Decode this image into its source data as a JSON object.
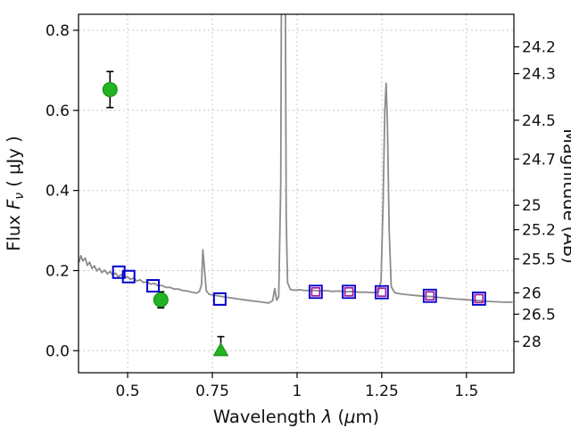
{
  "labels": {
    "ylabel_pre": "Flux ",
    "ylabel_F": "F",
    "ylabel_sub": "ν",
    "ylabel_post": " ( μJy )",
    "xlabel_pre": "Wavelength ",
    "xlabel_lambda": "λ",
    "xlabel_mid": " (",
    "xlabel_mu": "μ",
    "xlabel_post": "m)",
    "ylabel_right": "Magnitude (AB)"
  },
  "chart_data": {
    "type": "line",
    "title": "",
    "xlabel": "Wavelength λ (μm)",
    "ylabel": "Flux Fν ( μJy )",
    "ylabel_right": "Magnitude (AB)",
    "xlim": [
      0.355,
      1.64
    ],
    "ylim": [
      -0.055,
      0.84
    ],
    "grid": true,
    "legend": "none",
    "x_ticks": [
      0.5,
      0.75,
      1.0,
      1.25,
      1.5
    ],
    "x_tick_labels": [
      "0.5",
      "0.75",
      "1",
      "1.25",
      "1.5"
    ],
    "y_ticks_left": [
      0.0,
      0.2,
      0.4,
      0.6,
      0.8
    ],
    "y_tick_labels_left": [
      "0.0",
      "0.2",
      "0.4",
      "0.6",
      "0.8"
    ],
    "y_ticks_right": [
      {
        "label": "24.2",
        "flux": 0.7586
      },
      {
        "label": "24.3",
        "flux": 0.6918
      },
      {
        "label": "24.5",
        "flux": 0.5754
      },
      {
        "label": "24.7",
        "flux": 0.4786
      },
      {
        "label": "25",
        "flux": 0.3631
      },
      {
        "label": "25.2",
        "flux": 0.302
      },
      {
        "label": "25.5",
        "flux": 0.2291
      },
      {
        "label": "26",
        "flux": 0.1445
      },
      {
        "label": "26.5",
        "flux": 0.0912
      },
      {
        "label": "28",
        "flux": 0.0229
      }
    ],
    "colors": {
      "spectrum": "#8c8c8c",
      "green": "#22b422",
      "green_edge": "#0f8a0f",
      "blue": "#0000cd",
      "purple": "#a020a0",
      "errorbar": "#000000"
    },
    "series": [
      {
        "name": "model-spectrum",
        "type": "line",
        "color_key": "spectrum",
        "points": [
          [
            0.356,
            0.22
          ],
          [
            0.362,
            0.237
          ],
          [
            0.368,
            0.224
          ],
          [
            0.375,
            0.231
          ],
          [
            0.381,
            0.213
          ],
          [
            0.388,
            0.221
          ],
          [
            0.395,
            0.205
          ],
          [
            0.402,
            0.212
          ],
          [
            0.409,
            0.199
          ],
          [
            0.416,
            0.206
          ],
          [
            0.424,
            0.195
          ],
          [
            0.432,
            0.201
          ],
          [
            0.44,
            0.192
          ],
          [
            0.448,
            0.198
          ],
          [
            0.456,
            0.189
          ],
          [
            0.464,
            0.194
          ],
          [
            0.472,
            0.185
          ],
          [
            0.481,
            0.19
          ],
          [
            0.49,
            0.181
          ],
          [
            0.499,
            0.185
          ],
          [
            0.508,
            0.178
          ],
          [
            0.517,
            0.181
          ],
          [
            0.527,
            0.174
          ],
          [
            0.537,
            0.177
          ],
          [
            0.547,
            0.17
          ],
          [
            0.557,
            0.172
          ],
          [
            0.568,
            0.166
          ],
          [
            0.579,
            0.168
          ],
          [
            0.59,
            0.162
          ],
          [
            0.601,
            0.163
          ],
          [
            0.613,
            0.158
          ],
          [
            0.625,
            0.158
          ],
          [
            0.637,
            0.154
          ],
          [
            0.65,
            0.154
          ],
          [
            0.663,
            0.15
          ],
          [
            0.676,
            0.149
          ],
          [
            0.69,
            0.146
          ],
          [
            0.704,
            0.144
          ],
          [
            0.712,
            0.148
          ],
          [
            0.718,
            0.165
          ],
          [
            0.722,
            0.252
          ],
          [
            0.727,
            0.2
          ],
          [
            0.732,
            0.15
          ],
          [
            0.74,
            0.141
          ],
          [
            0.752,
            0.139
          ],
          [
            0.766,
            0.137
          ],
          [
            0.781,
            0.135
          ],
          [
            0.796,
            0.133
          ],
          [
            0.812,
            0.131
          ],
          [
            0.828,
            0.129
          ],
          [
            0.845,
            0.127
          ],
          [
            0.862,
            0.125
          ],
          [
            0.88,
            0.123
          ],
          [
            0.898,
            0.121
          ],
          [
            0.916,
            0.119
          ],
          [
            0.928,
            0.125
          ],
          [
            0.934,
            0.155
          ],
          [
            0.94,
            0.126
          ],
          [
            0.946,
            0.135
          ],
          [
            0.952,
            0.42
          ],
          [
            0.956,
            1.4
          ],
          [
            0.96,
            2.3
          ],
          [
            0.964,
            1.2
          ],
          [
            0.968,
            0.33
          ],
          [
            0.972,
            0.17
          ],
          [
            0.98,
            0.153
          ],
          [
            0.992,
            0.151
          ],
          [
            1.008,
            0.152
          ],
          [
            1.026,
            0.15
          ],
          [
            1.045,
            0.151
          ],
          [
            1.064,
            0.149
          ],
          [
            1.084,
            0.15
          ],
          [
            1.104,
            0.148
          ],
          [
            1.124,
            0.149
          ],
          [
            1.144,
            0.147
          ],
          [
            1.164,
            0.148
          ],
          [
            1.184,
            0.146
          ],
          [
            1.204,
            0.146
          ],
          [
            1.224,
            0.145
          ],
          [
            1.24,
            0.147
          ],
          [
            1.248,
            0.175
          ],
          [
            1.254,
            0.37
          ],
          [
            1.259,
            0.6
          ],
          [
            1.263,
            0.668
          ],
          [
            1.267,
            0.56
          ],
          [
            1.272,
            0.3
          ],
          [
            1.278,
            0.16
          ],
          [
            1.288,
            0.145
          ],
          [
            1.304,
            0.142
          ],
          [
            1.324,
            0.14
          ],
          [
            1.348,
            0.138
          ],
          [
            1.372,
            0.136
          ],
          [
            1.396,
            0.135
          ],
          [
            1.42,
            0.133
          ],
          [
            1.444,
            0.131
          ],
          [
            1.468,
            0.129
          ],
          [
            1.492,
            0.128
          ],
          [
            1.516,
            0.126
          ],
          [
            1.54,
            0.125
          ],
          [
            1.564,
            0.123
          ],
          [
            1.588,
            0.122
          ],
          [
            1.612,
            0.121
          ],
          [
            1.636,
            0.121
          ]
        ]
      },
      {
        "name": "green-filled-circles",
        "type": "scatter",
        "marker": "circle",
        "color_key": "green",
        "points": [
          {
            "x": 0.448,
            "y": 0.652,
            "yerr": 0.045
          },
          {
            "x": 0.598,
            "y": 0.127,
            "yerr": 0.02
          }
        ]
      },
      {
        "name": "green-triangle-upper-limit",
        "type": "scatter",
        "marker": "triangle-up",
        "color_key": "green",
        "points": [
          {
            "x": 0.775,
            "y": 0.001,
            "yerr_up": 0.034
          }
        ]
      },
      {
        "name": "blue-open-squares",
        "type": "scatter",
        "marker": "square-open",
        "color_key": "blue",
        "points": [
          {
            "x": 0.474,
            "y": 0.196
          },
          {
            "x": 0.503,
            "y": 0.185
          },
          {
            "x": 0.575,
            "y": 0.162
          },
          {
            "x": 0.772,
            "y": 0.129
          }
        ]
      },
      {
        "name": "blue-purple-double-squares",
        "type": "scatter",
        "marker": "square-double",
        "color_key": "blue",
        "color_key2": "purple",
        "points": [
          {
            "x": 1.055,
            "y": 0.147
          },
          {
            "x": 1.153,
            "y": 0.147
          },
          {
            "x": 1.25,
            "y": 0.146
          },
          {
            "x": 1.392,
            "y": 0.137
          },
          {
            "x": 1.537,
            "y": 0.13
          }
        ]
      }
    ]
  }
}
